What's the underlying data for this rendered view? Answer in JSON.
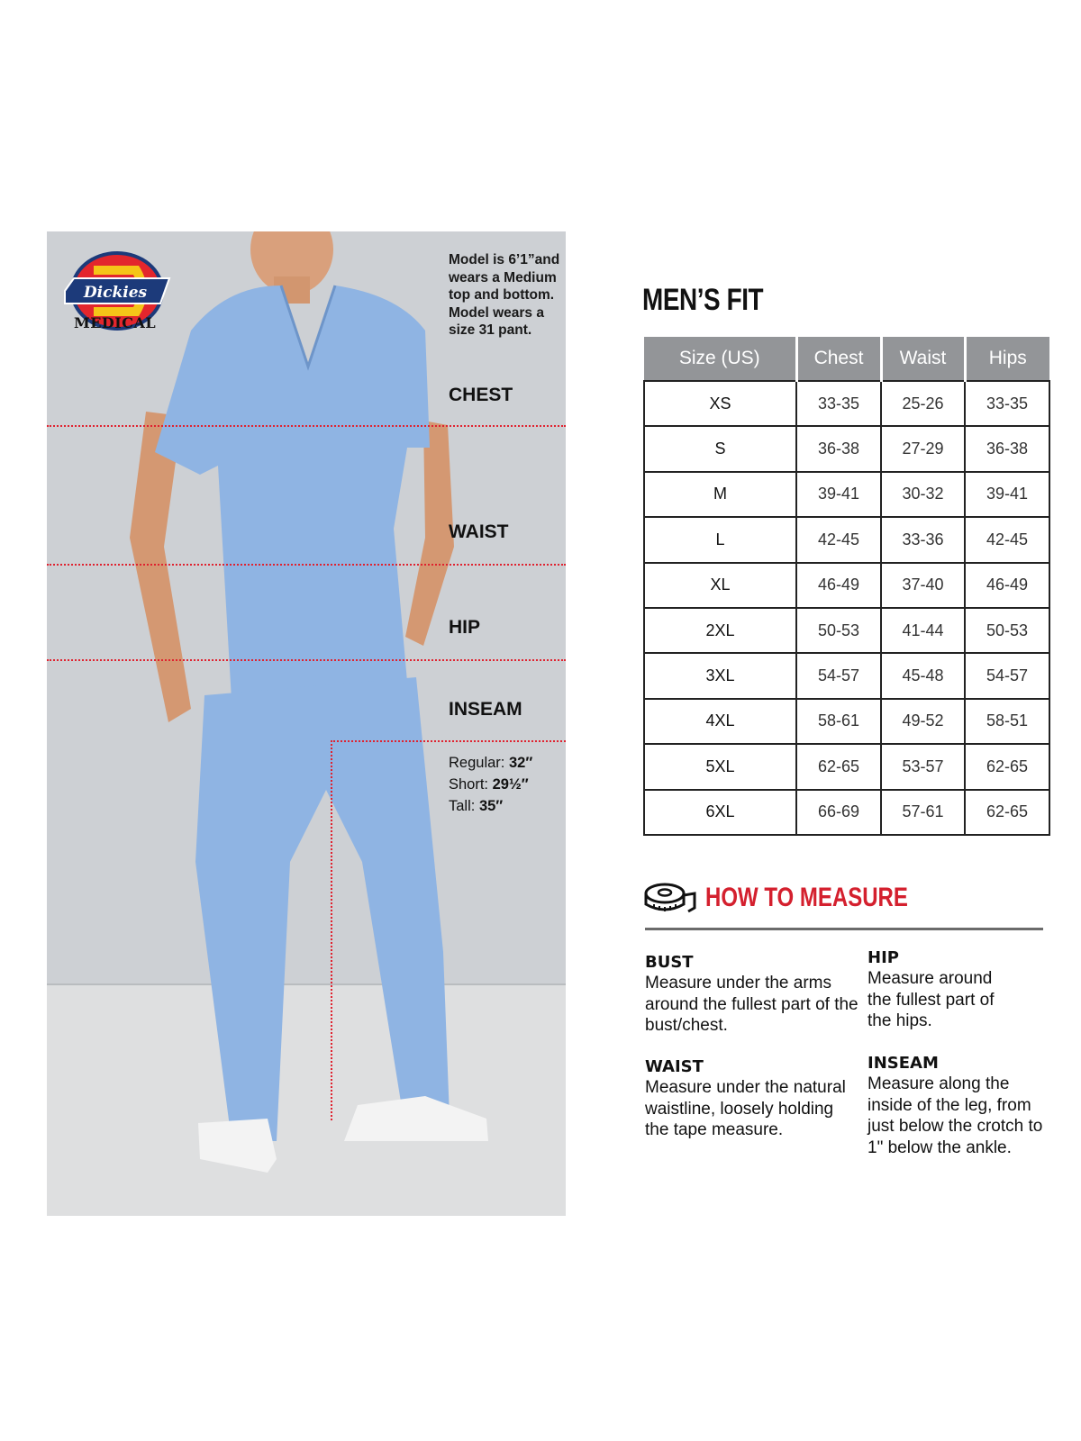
{
  "brand": {
    "logo_text": "Dickies",
    "sub": "MEDICAL",
    "colors": {
      "red": "#e3262d",
      "yellow": "#f5c518",
      "navy": "#1c3a7a"
    }
  },
  "photo": {
    "model_note": "Model is 6’1”and wears a Medium top and bottom. Model wears a size 31 pant.",
    "labels": {
      "chest": "CHEST",
      "waist": "WAIST",
      "hip": "HIP",
      "inseam": "INSEAM"
    },
    "inseam": [
      {
        "label": "Regular:",
        "value": "32″"
      },
      {
        "label": "Short:",
        "value": "29½″"
      },
      {
        "label": "Tall:",
        "value": "35″"
      }
    ],
    "scrub_color": "#8fb4e3"
  },
  "title": "MEN’S FIT",
  "table": {
    "headers": [
      "Size (US)",
      "Chest",
      "Waist",
      "Hips"
    ],
    "rows": [
      [
        "XS",
        "33-35",
        "25-26",
        "33-35"
      ],
      [
        "S",
        "36-38",
        "27-29",
        "36-38"
      ],
      [
        "M",
        "39-41",
        "30-32",
        "39-41"
      ],
      [
        "L",
        "42-45",
        "33-36",
        "42-45"
      ],
      [
        "XL",
        "46-49",
        "37-40",
        "46-49"
      ],
      [
        "2XL",
        "50-53",
        "41-44",
        "50-53"
      ],
      [
        "3XL",
        "54-57",
        "45-48",
        "54-57"
      ],
      [
        "4XL",
        "58-61",
        "49-52",
        "58-51"
      ],
      [
        "5XL",
        "62-65",
        "53-57",
        "62-65"
      ],
      [
        "6XL",
        "66-69",
        "57-61",
        "62-65"
      ]
    ]
  },
  "how_to_measure": {
    "title": "HOW TO MEASURE",
    "icon": "tape-measure-icon",
    "accent": "#d4202e",
    "items": [
      {
        "heading": "BUST",
        "text": "Measure under the arms around the fullest part of the bust/chest."
      },
      {
        "heading": "WAIST",
        "text": "Measure under the natural waistline, loosely holding the tape measure."
      },
      {
        "heading": "HIP",
        "text": "Measure around the fullest part of the hips."
      },
      {
        "heading": "INSEAM",
        "text": "Measure along the inside of the leg, from just below the crotch to 1\" below the ankle."
      }
    ]
  }
}
